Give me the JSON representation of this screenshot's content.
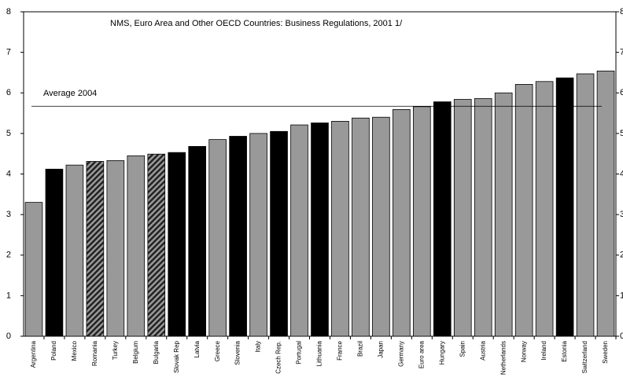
{
  "chart_data": {
    "type": "bar",
    "title": "NMS, Euro Area and Other OECD Countries: Business Regulations, 2001 1/",
    "categories": [
      "Argentina",
      "Poland",
      "Mexico",
      "Romania",
      "Turkey",
      "Belgium",
      "Bulgaria",
      "Slovak Rep",
      "Latvia",
      "Greece",
      "Slovenia",
      "Italy",
      "Czech Rep.",
      "Portugal",
      "Lithuania",
      "France",
      "Brazil",
      "Japan",
      "Germany",
      "Euro area",
      "Hungary",
      "Spain",
      "Austria",
      "Netherlands",
      "Norway",
      "Ireland",
      "Estonia",
      "Switzerland",
      "Sweden"
    ],
    "values": [
      3.3,
      4.12,
      4.22,
      4.31,
      4.33,
      4.45,
      4.49,
      4.53,
      4.68,
      4.85,
      4.93,
      5.0,
      5.05,
      5.21,
      5.26,
      5.3,
      5.38,
      5.4,
      5.59,
      5.66,
      5.78,
      5.84,
      5.86,
      6.0,
      6.21,
      6.28,
      6.37,
      6.47,
      6.54
    ],
    "bar_colors": [
      "#999999",
      "#000000",
      "#999999",
      "#666666",
      "#999999",
      "#999999",
      "#666666",
      "#000000",
      "#000000",
      "#999999",
      "#000000",
      "#999999",
      "#000000",
      "#999999",
      "#000000",
      "#999999",
      "#999999",
      "#999999",
      "#999999",
      "#999999",
      "#000000",
      "#999999",
      "#999999",
      "#999999",
      "#999999",
      "#999999",
      "#000000",
      "#999999",
      "#999999"
    ],
    "hatched": [
      false,
      false,
      false,
      true,
      false,
      false,
      true,
      false,
      false,
      false,
      false,
      false,
      false,
      false,
      false,
      false,
      false,
      false,
      false,
      false,
      false,
      false,
      false,
      false,
      false,
      false,
      false,
      false,
      false
    ],
    "reference_line": {
      "value": 5.67,
      "label": "Average 2004"
    },
    "ylim": [
      0,
      8
    ],
    "yticks": [
      0,
      1,
      2,
      3,
      4,
      5,
      6,
      7,
      8
    ],
    "y2lim": [
      0,
      8
    ],
    "y2ticks": [
      0,
      1,
      2,
      3,
      4,
      5,
      6,
      7,
      8
    ]
  }
}
